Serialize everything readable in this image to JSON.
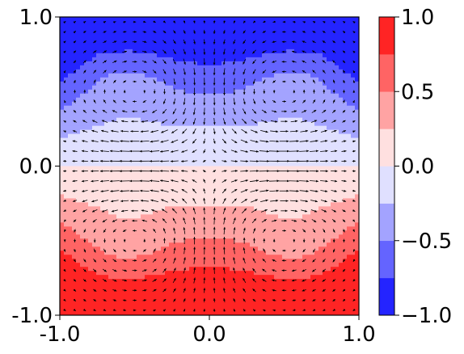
{
  "chart_data": {
    "type": "contourf_quiver",
    "title": "",
    "xlabel": "",
    "ylabel": "",
    "xlim": [
      -1.0,
      1.0
    ],
    "ylim": [
      -1.0,
      1.0
    ],
    "x_ticks": [
      {
        "value": -1.0,
        "label": "-1.0"
      },
      {
        "value": 0.0,
        "label": "0.0"
      },
      {
        "value": 1.0,
        "label": "1.0"
      }
    ],
    "y_ticks": [
      {
        "value": -1.0,
        "label": "-1.0"
      },
      {
        "value": 0.0,
        "label": "0.0"
      },
      {
        "value": 1.0,
        "label": "1.0"
      }
    ],
    "colorbar": {
      "range": [
        -1.0,
        1.0
      ],
      "levels": [
        -1.0,
        -0.75,
        -0.5,
        -0.25,
        0.0,
        0.25,
        0.5,
        0.75,
        1.0
      ],
      "colors": [
        "#2424ff",
        "#6464ff",
        "#a3a3ff",
        "#e0e0ff",
        "#ffe0e0",
        "#ffa3a3",
        "#ff6464",
        "#ff2424"
      ],
      "ticks": [
        {
          "value": -1.0,
          "label": "−1.0"
        },
        {
          "value": -0.5,
          "label": "−0.5"
        },
        {
          "value": 0.0,
          "label": "0.0"
        },
        {
          "value": 0.5,
          "label": "0.5"
        },
        {
          "value": 1.0,
          "label": "1.0"
        }
      ]
    },
    "scalar_field": "approximately -sin(pi*y/2) with flattening toward the interior (blue top half, red bottom half)",
    "vortices": [
      {
        "x": -0.55,
        "y": 0.5
      },
      {
        "x": 0.55,
        "y": 0.5
      },
      {
        "x": -0.55,
        "y": -0.45
      },
      {
        "x": 0.55,
        "y": -0.45
      }
    ],
    "quiver_grid": {
      "nx": 30,
      "ny": 30
    },
    "arrow_color": "#000000",
    "grid": false,
    "legend": "none"
  }
}
